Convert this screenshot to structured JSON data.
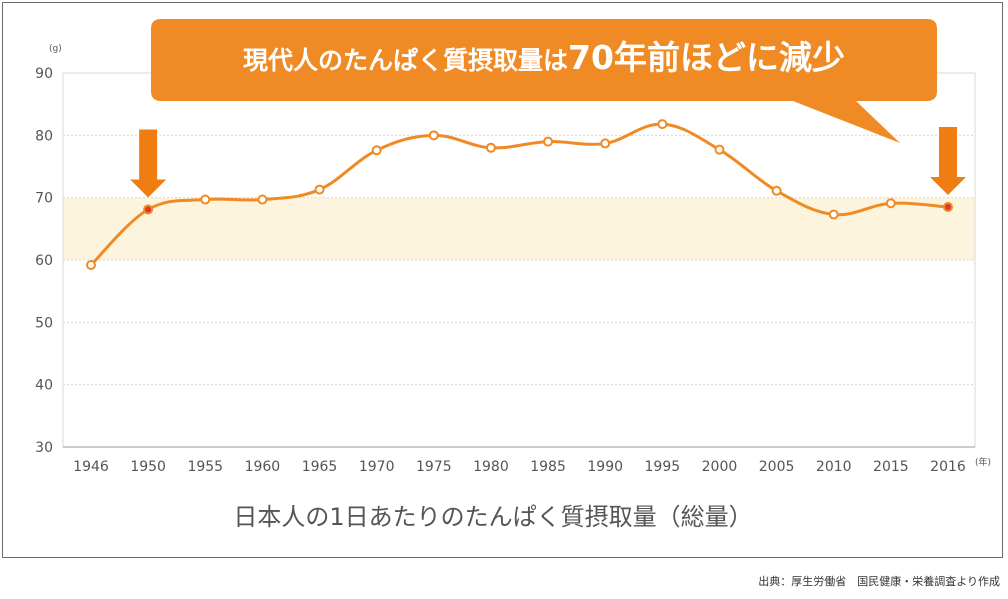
{
  "chart_data": {
    "type": "line",
    "title": "現代人のたんぱく質摂取量は70年前ほどに減少",
    "title_parts": {
      "normal": "現代人のたんぱく質摂取量は",
      "emphasis": "70年前ほどに減少"
    },
    "caption": "日本人の1日あたりのたんぱく質摂取量（総量）",
    "source": "出典：厚生労働省　国民健康・栄養調査より作成",
    "y_unit": "(g)",
    "x_unit": "(年)",
    "ylim": [
      30,
      90
    ],
    "yticks": [
      30,
      40,
      50,
      60,
      70,
      80,
      90
    ],
    "highlight_band": [
      60,
      70
    ],
    "grid": true,
    "x": [
      "1946",
      "1950",
      "1955",
      "1960",
      "1965",
      "1970",
      "1975",
      "1980",
      "1985",
      "1990",
      "1995",
      "2000",
      "2005",
      "2010",
      "2015",
      "2016"
    ],
    "series": [
      {
        "values": [
          59.2,
          68.1,
          69.7,
          69.7,
          71.3,
          77.6,
          80.0,
          78.0,
          79.0,
          78.7,
          81.8,
          77.7,
          71.1,
          67.3,
          69.1,
          68.5
        ]
      }
    ],
    "highlighted_points": [
      "1950",
      "2016"
    ],
    "colors": {
      "line": "#f08a24",
      "point_fill": "#ffffff",
      "highlight_point": "#e0362c",
      "band": "#fdf4de",
      "banner": "#f08a24",
      "arrow": "#f07d12",
      "grid": "#d8d8d8"
    }
  }
}
